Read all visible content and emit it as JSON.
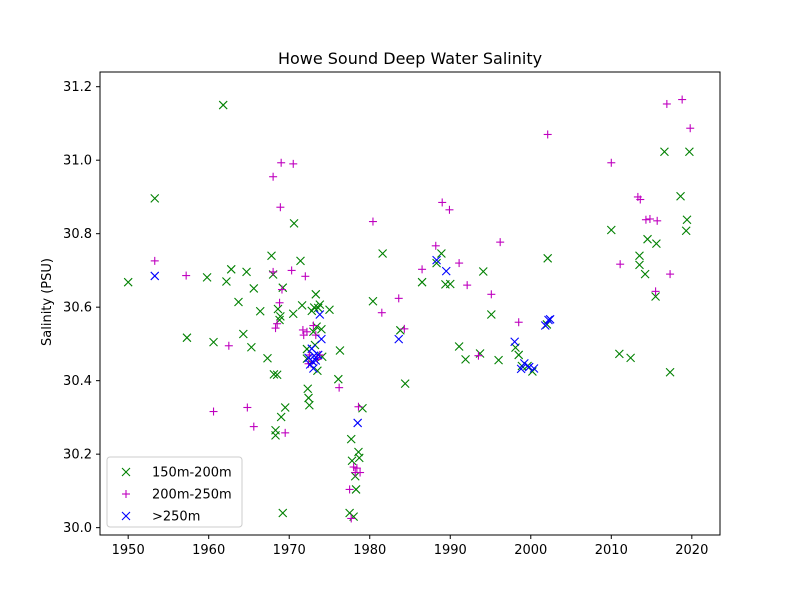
{
  "chart_data": {
    "type": "scatter",
    "title": "Howe Sound Deep Water Salinity",
    "xlabel": "",
    "ylabel": "Salinity (PSU)",
    "xlim": [
      1946.5,
      2023.5
    ],
    "ylim": [
      29.98,
      31.24
    ],
    "xticks": [
      1950,
      1960,
      1970,
      1980,
      1990,
      2000,
      2010,
      2020
    ],
    "yticks": [
      30.0,
      30.2,
      30.4,
      30.6,
      30.8,
      31.0,
      31.2
    ],
    "ytick_labels": [
      "30.0",
      "30.2",
      "30.4",
      "30.6",
      "30.8",
      "31.0",
      "31.2"
    ],
    "legend_position": "lower-left",
    "series": [
      {
        "name": "150m-200m",
        "color": "#008000",
        "marker": "x",
        "points": [
          [
            1950.0,
            30.668
          ],
          [
            1953.3,
            30.896
          ],
          [
            1957.3,
            30.517
          ],
          [
            1959.8,
            30.681
          ],
          [
            1960.6,
            30.505
          ],
          [
            1961.8,
            31.15
          ],
          [
            1962.2,
            30.67
          ],
          [
            1962.8,
            30.703
          ],
          [
            1963.7,
            30.614
          ],
          [
            1964.3,
            30.527
          ],
          [
            1964.7,
            30.696
          ],
          [
            1965.3,
            30.491
          ],
          [
            1965.6,
            30.651
          ],
          [
            1966.4,
            30.589
          ],
          [
            1967.3,
            30.461
          ],
          [
            1967.8,
            30.74
          ],
          [
            1968.0,
            30.689
          ],
          [
            1968.1,
            30.417
          ],
          [
            1968.3,
            30.265
          ],
          [
            1968.3,
            30.251
          ],
          [
            1968.5,
            30.416
          ],
          [
            1968.6,
            30.595
          ],
          [
            1968.8,
            30.565
          ],
          [
            1968.9,
            30.575
          ],
          [
            1969.0,
            30.301
          ],
          [
            1969.2,
            30.04
          ],
          [
            1969.2,
            30.653
          ],
          [
            1969.5,
            30.327
          ],
          [
            1970.5,
            30.582
          ],
          [
            1970.6,
            30.828
          ],
          [
            1971.4,
            30.726
          ],
          [
            1971.6,
            30.605
          ],
          [
            1972.2,
            30.486
          ],
          [
            1972.2,
            30.46
          ],
          [
            1972.3,
            30.378
          ],
          [
            1972.4,
            30.353
          ],
          [
            1972.5,
            30.333
          ],
          [
            1972.8,
            30.59
          ],
          [
            1973.0,
            30.533
          ],
          [
            1973.1,
            30.599
          ],
          [
            1973.2,
            30.497
          ],
          [
            1973.3,
            30.635
          ],
          [
            1973.4,
            30.547
          ],
          [
            1973.5,
            30.427
          ],
          [
            1973.6,
            30.598
          ],
          [
            1973.8,
            30.607
          ],
          [
            1974.0,
            30.54
          ],
          [
            1974.1,
            30.465
          ],
          [
            1975.0,
            30.593
          ],
          [
            1976.1,
            30.404
          ],
          [
            1976.3,
            30.482
          ],
          [
            1977.5,
            30.04
          ],
          [
            1977.7,
            30.241
          ],
          [
            1977.8,
            30.182
          ],
          [
            1978.0,
            30.03
          ],
          [
            1978.2,
            30.14
          ],
          [
            1978.3,
            30.104
          ],
          [
            1978.6,
            30.206
          ],
          [
            1978.7,
            30.19
          ],
          [
            1979.1,
            30.325
          ],
          [
            1980.4,
            30.616
          ],
          [
            1981.6,
            30.746
          ],
          [
            1983.8,
            30.537
          ],
          [
            1984.4,
            30.392
          ],
          [
            1986.5,
            30.668
          ],
          [
            1988.3,
            30.72
          ],
          [
            1988.9,
            30.746
          ],
          [
            1989.4,
            30.662
          ],
          [
            1990.0,
            30.663
          ],
          [
            1991.1,
            30.493
          ],
          [
            1991.9,
            30.458
          ],
          [
            1993.7,
            30.474
          ],
          [
            1994.1,
            30.697
          ],
          [
            1995.1,
            30.58
          ],
          [
            1996.0,
            30.456
          ],
          [
            1998.1,
            30.49
          ],
          [
            1998.5,
            30.47
          ],
          [
            1998.9,
            30.44
          ],
          [
            1999.6,
            30.44
          ],
          [
            2000.2,
            30.425
          ],
          [
            2002.0,
            30.553
          ],
          [
            2002.1,
            30.733
          ],
          [
            2010.0,
            30.81
          ],
          [
            2011.0,
            30.473
          ],
          [
            2012.4,
            30.462
          ],
          [
            2013.5,
            30.74
          ],
          [
            2013.5,
            30.715
          ],
          [
            2014.2,
            30.69
          ],
          [
            2014.5,
            30.785
          ],
          [
            2015.5,
            30.629
          ],
          [
            2015.6,
            30.773
          ],
          [
            2016.6,
            31.023
          ],
          [
            2017.3,
            30.423
          ],
          [
            2018.6,
            30.902
          ],
          [
            2019.3,
            30.808
          ],
          [
            2019.4,
            30.838
          ],
          [
            2019.7,
            31.023
          ]
        ]
      },
      {
        "name": "200m-250m",
        "color": "#bf00bf",
        "marker": "+",
        "points": [
          [
            1953.3,
            30.726
          ],
          [
            1957.2,
            30.686
          ],
          [
            1960.6,
            30.316
          ],
          [
            1962.5,
            30.495
          ],
          [
            1964.8,
            30.327
          ],
          [
            1965.6,
            30.275
          ],
          [
            1968.0,
            30.955
          ],
          [
            1968.0,
            30.696
          ],
          [
            1968.3,
            30.543
          ],
          [
            1968.5,
            30.555
          ],
          [
            1968.8,
            30.612
          ],
          [
            1968.9,
            30.872
          ],
          [
            1969.0,
            30.993
          ],
          [
            1969.1,
            30.648
          ],
          [
            1969.5,
            30.258
          ],
          [
            1970.3,
            30.7
          ],
          [
            1970.5,
            30.99
          ],
          [
            1971.7,
            30.538
          ],
          [
            1971.8,
            30.524
          ],
          [
            1972.0,
            30.684
          ],
          [
            1972.2,
            30.533
          ],
          [
            1972.4,
            30.446
          ],
          [
            1972.5,
            30.47
          ],
          [
            1972.7,
            30.447
          ],
          [
            1973.0,
            30.55
          ],
          [
            1973.3,
            30.524
          ],
          [
            1973.5,
            30.458
          ],
          [
            1973.8,
            30.47
          ],
          [
            1976.2,
            30.381
          ],
          [
            1977.5,
            30.104
          ],
          [
            1977.7,
            30.025
          ],
          [
            1978.0,
            30.165
          ],
          [
            1978.2,
            30.15
          ],
          [
            1978.4,
            30.162
          ],
          [
            1978.6,
            30.329
          ],
          [
            1978.8,
            30.15
          ],
          [
            1980.4,
            30.833
          ],
          [
            1981.5,
            30.585
          ],
          [
            1983.6,
            30.624
          ],
          [
            1984.3,
            30.541
          ],
          [
            1986.5,
            30.703
          ],
          [
            1988.2,
            30.767
          ],
          [
            1989.0,
            30.885
          ],
          [
            1989.9,
            30.865
          ],
          [
            1991.1,
            30.72
          ],
          [
            1992.1,
            30.66
          ],
          [
            1993.5,
            30.468
          ],
          [
            1995.1,
            30.635
          ],
          [
            1996.2,
            30.777
          ],
          [
            1998.5,
            30.559
          ],
          [
            2002.1,
            31.07
          ],
          [
            2010.0,
            30.993
          ],
          [
            2011.1,
            30.717
          ],
          [
            2013.3,
            30.9
          ],
          [
            2013.6,
            30.893
          ],
          [
            2014.3,
            30.838
          ],
          [
            2014.8,
            30.84
          ],
          [
            2015.5,
            30.643
          ],
          [
            2015.7,
            30.835
          ],
          [
            2016.9,
            31.153
          ],
          [
            2017.3,
            30.69
          ],
          [
            2018.8,
            31.165
          ],
          [
            2019.8,
            31.087
          ]
        ]
      },
      {
        "name": ">250m",
        "color": "#0000ff",
        "marker": "x",
        "points": [
          [
            1953.3,
            30.685
          ],
          [
            1972.4,
            30.462
          ],
          [
            1972.6,
            30.444
          ],
          [
            1972.8,
            30.487
          ],
          [
            1972.9,
            30.452
          ],
          [
            1973.0,
            30.433
          ],
          [
            1973.1,
            30.468
          ],
          [
            1973.3,
            30.455
          ],
          [
            1973.6,
            30.47
          ],
          [
            1973.8,
            30.58
          ],
          [
            1974.0,
            30.513
          ],
          [
            1978.5,
            30.285
          ],
          [
            1983.6,
            30.513
          ],
          [
            1988.3,
            30.728
          ],
          [
            1989.5,
            30.698
          ],
          [
            1998.0,
            30.506
          ],
          [
            1998.8,
            30.432
          ],
          [
            1999.2,
            30.447
          ],
          [
            1999.8,
            30.437
          ],
          [
            2000.4,
            30.433
          ],
          [
            2001.8,
            30.55
          ],
          [
            2002.2,
            30.565
          ],
          [
            2002.4,
            30.567
          ]
        ]
      }
    ]
  }
}
